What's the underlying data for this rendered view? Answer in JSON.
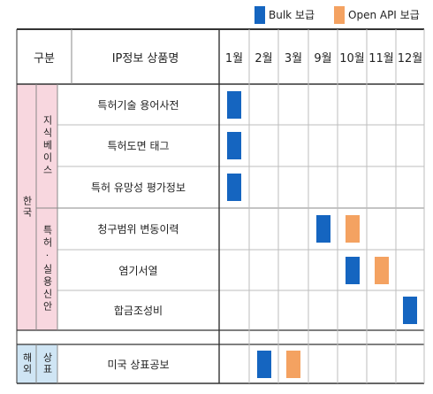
{
  "legend": {
    "bulk": {
      "label": "Bulk 보급",
      "color": "#1565c0"
    },
    "openapi": {
      "label": "Open API 보급",
      "color": "#f4a261"
    }
  },
  "header": {
    "category": "구분",
    "product": "IP정보 상품명",
    "months": [
      "1월",
      "2월",
      "3월",
      "9월",
      "10월",
      "11월",
      "12월"
    ]
  },
  "groups": {
    "korea": {
      "label": "한국"
    },
    "knowledge_base": {
      "label": "지식베이스"
    },
    "patent_utility": {
      "label": "특허·실용신안"
    },
    "overseas": {
      "label": "해외"
    },
    "trademark": {
      "label": "상표"
    }
  },
  "rows": [
    {
      "product": "특허기술 용어사전",
      "schedule": [
        {
          "type": "bulk",
          "month": "1월"
        }
      ]
    },
    {
      "product": "특허도면 태그",
      "schedule": [
        {
          "type": "bulk",
          "month": "1월"
        }
      ]
    },
    {
      "product": "특허 유망성 평가정보",
      "schedule": [
        {
          "type": "bulk",
          "month": "1월"
        }
      ]
    },
    {
      "product": "청구범위 변동이력",
      "schedule": [
        {
          "type": "bulk",
          "month": "9월"
        },
        {
          "type": "openapi",
          "month": "10월"
        }
      ]
    },
    {
      "product": "염기서열",
      "schedule": [
        {
          "type": "bulk",
          "month": "10월"
        },
        {
          "type": "openapi",
          "month": "11월"
        }
      ]
    },
    {
      "product": "합금조성비",
      "schedule": [
        {
          "type": "bulk",
          "month": "12월"
        }
      ]
    },
    {
      "product": "미국 상표공보",
      "schedule": [
        {
          "type": "bulk",
          "month": "2월"
        },
        {
          "type": "openapi",
          "month": "3월"
        }
      ]
    }
  ]
}
